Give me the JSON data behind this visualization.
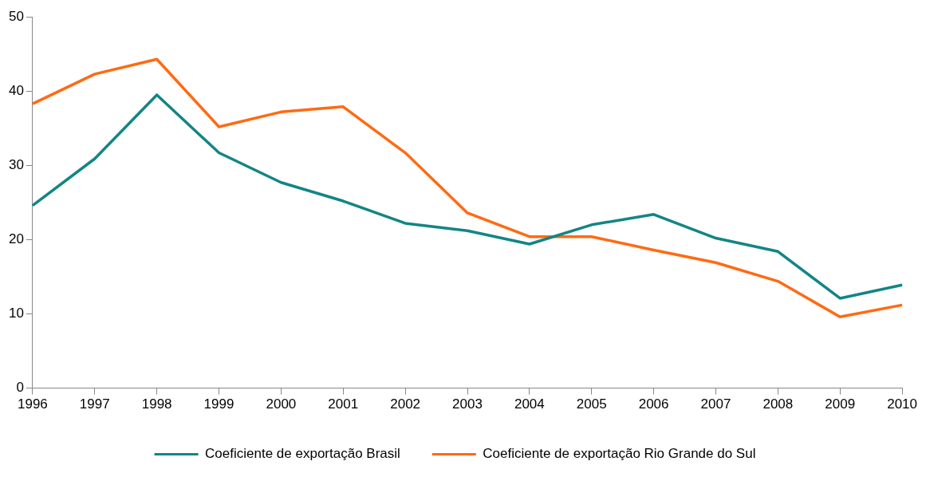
{
  "chart_data": {
    "type": "line",
    "categories": [
      "1996",
      "1997",
      "1998",
      "1999",
      "2000",
      "2001",
      "2002",
      "2003",
      "2004",
      "2005",
      "2006",
      "2007",
      "2008",
      "2009",
      "2010"
    ],
    "series": [
      {
        "name": "Coeficiente de exportação Brasil",
        "color": "#138585",
        "values": [
          24.6,
          30.9,
          39.5,
          31.7,
          27.7,
          25.2,
          22.2,
          21.2,
          19.4,
          22.0,
          23.4,
          20.2,
          18.4,
          12.1,
          13.9
        ]
      },
      {
        "name": "Coeficiente de exportação Rio Grande do Sul",
        "color": "#ff6a13",
        "values": [
          38.3,
          42.3,
          44.3,
          35.2,
          37.2,
          37.9,
          31.7,
          23.6,
          20.4,
          20.4,
          18.6,
          16.9,
          14.4,
          9.6,
          11.2
        ]
      }
    ],
    "ylim": [
      0,
      50
    ],
    "yticks": [
      0,
      10,
      20,
      30,
      40,
      50
    ],
    "legend": "bottom",
    "marker": "none",
    "line_style": "solid"
  }
}
